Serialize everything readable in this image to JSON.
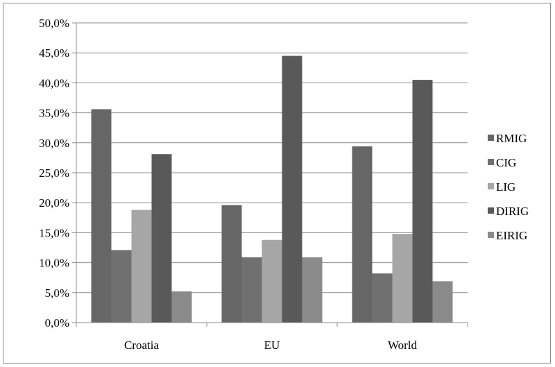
{
  "chart_data": {
    "type": "bar",
    "categories": [
      "Croatia",
      "EU",
      "World"
    ],
    "series": [
      {
        "name": "RMIG",
        "color": "#666666",
        "values": [
          35.6,
          19.6,
          29.4
        ]
      },
      {
        "name": "CIG",
        "color": "#707070",
        "values": [
          12.1,
          10.9,
          8.2
        ]
      },
      {
        "name": "LIG",
        "color": "#a6a6a6",
        "values": [
          18.8,
          13.8,
          14.8
        ]
      },
      {
        "name": "DIRIG",
        "color": "#595959",
        "values": [
          28.1,
          44.5,
          40.5
        ]
      },
      {
        "name": "EIRIG",
        "color": "#8a8a8a",
        "values": [
          5.2,
          10.9,
          6.9
        ]
      }
    ],
    "y_ticks": [
      "0,0%",
      "5,0%",
      "10,0%",
      "15,0%",
      "20,0%",
      "25,0%",
      "30,0%",
      "35,0%",
      "40,0%",
      "45,0%",
      "50,0%"
    ],
    "ylim": [
      0,
      50
    ],
    "grid": true,
    "legend_position": "right"
  }
}
